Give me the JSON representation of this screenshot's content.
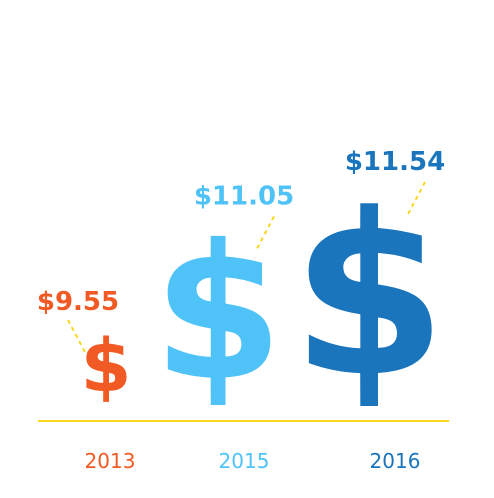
{
  "chart_data": {
    "type": "bar",
    "title": "",
    "xlabel": "",
    "ylabel": "",
    "categories": [
      "2013",
      "2015",
      "2016"
    ],
    "values": [
      9.55,
      11.05,
      11.54
    ],
    "value_labels": [
      "$9.55",
      "$11.05",
      "$11.54"
    ],
    "mark_glyph": "$",
    "colors": [
      "#f15a24",
      "#4fc3f7",
      "#1a75bc"
    ],
    "baseline_color": "#f9d71c",
    "leader_color": "#f9d71c",
    "grid": false,
    "legend": "none"
  }
}
